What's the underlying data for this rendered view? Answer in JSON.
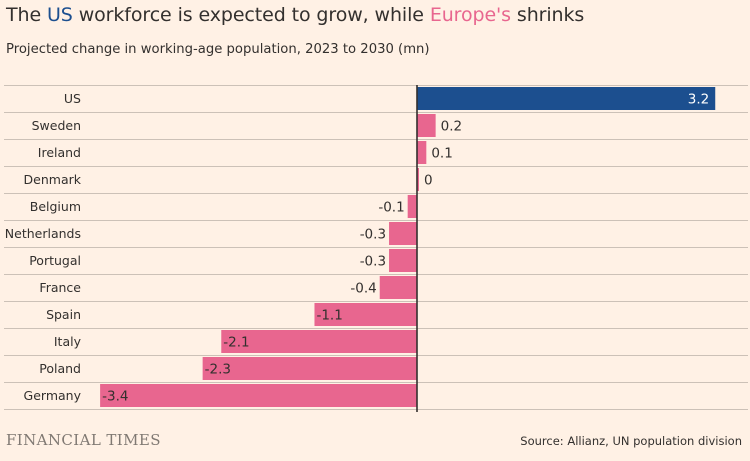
{
  "title": {
    "prefix": "The ",
    "highlight1": "US",
    "middle": " workforce is expected to grow, while ",
    "highlight2": "Europe's",
    "suffix": " shrinks"
  },
  "subtitle": "Projected change in working-age population, 2023 to 2030 (mn)",
  "footer": {
    "brand": "FINANCIAL TIMES",
    "source": "Source: Allianz, UN population division"
  },
  "colors": {
    "background": "#FFF1E5",
    "us_bar": "#1C4F8F",
    "europe_bar": "#E8668F",
    "gridline": "#CCC1B7",
    "axis": "#33302E"
  },
  "chart_data": {
    "type": "bar",
    "orientation": "horizontal",
    "categories": [
      "US",
      "Sweden",
      "Ireland",
      "Denmark",
      "Belgium",
      "Netherlands",
      "Portugal",
      "France",
      "Spain",
      "Italy",
      "Poland",
      "Germany"
    ],
    "values": [
      3.2,
      0.2,
      0.1,
      0,
      -0.1,
      -0.3,
      -0.3,
      -0.4,
      -1.1,
      -2.1,
      -2.3,
      -3.4
    ],
    "labels": [
      "3.2",
      "0.2",
      "0.1",
      "0",
      "-0.1",
      "-0.3",
      "-0.3",
      "-0.4",
      "-1.1",
      "-2.1",
      "-2.3",
      "-3.4"
    ],
    "xlim": [
      -3.4,
      3.2
    ],
    "grid": true,
    "legend": "none"
  }
}
